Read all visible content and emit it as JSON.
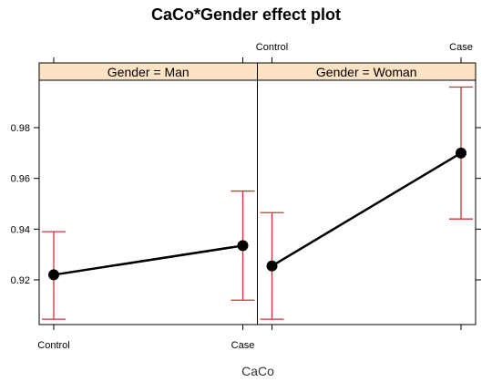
{
  "chart_data": {
    "type": "line",
    "title": "CaCo*Gender effect plot",
    "xlabel": "CaCo",
    "ylabel": "",
    "categories": [
      "Control",
      "Case"
    ],
    "ylim": [
      0.9,
      1.0
    ],
    "y_ticks": [
      0.92,
      0.94,
      0.96,
      0.98
    ],
    "y_tick_labels": [
      "0.92",
      "0.94",
      "0.96",
      "0.98"
    ],
    "grid": false,
    "line_color": "#000000",
    "errorbar_color": "#cc3333",
    "strip_color": "#fde3c4",
    "panels": [
      {
        "label": "Gender = Man",
        "series": [
          {
            "values": [
              0.922,
              0.9335
            ],
            "lower": [
              0.9045,
              0.912
            ],
            "upper": [
              0.939,
              0.955
            ]
          }
        ]
      },
      {
        "label": "Gender = Woman",
        "series": [
          {
            "values": [
              0.9255,
              0.97
            ],
            "lower": [
              0.9045,
              0.944
            ],
            "upper": [
              0.9465,
              0.996
            ]
          }
        ]
      }
    ]
  }
}
